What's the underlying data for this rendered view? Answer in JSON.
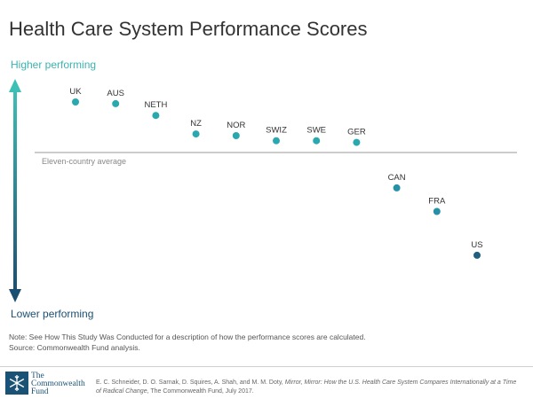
{
  "title": "Health Care System Performance Scores",
  "axis_labels": {
    "top": "Higher performing",
    "bottom": "Lower performing"
  },
  "colors": {
    "top_label": "#3bb3b0",
    "bottom_label": "#1b4f72",
    "average_line": "#999999",
    "point_high": "#2aa8b0",
    "point_low": "#1f5f82"
  },
  "average_label": "Eleven-country average",
  "chart_data": {
    "type": "scatter",
    "title": "Health Care System Performance Scores",
    "ylabel_top": "Higher performing",
    "ylabel_bottom": "Lower performing",
    "reference_line": {
      "label": "Eleven-country average",
      "value": 0
    },
    "categories": [
      "UK",
      "AUS",
      "NETH",
      "NZ",
      "NOR",
      "SWIZ",
      "SWE",
      "GER",
      "CAN",
      "FRA",
      "US"
    ],
    "values": [
      0.3,
      0.29,
      0.22,
      0.11,
      0.1,
      0.07,
      0.07,
      0.06,
      -0.21,
      -0.35,
      -0.61
    ],
    "ylim": [
      -0.8,
      0.5
    ],
    "grid": false,
    "legend": "none"
  },
  "note": "Note: See How This Study Was Conducted for a description of how the performance scores are calculated.",
  "source": "Source: Commonwealth Fund analysis.",
  "logo": {
    "line1": "The",
    "line2": "Commonwealth",
    "line3": "Fund"
  },
  "citation": {
    "authors": "E. C. Schneider, D. O. Sarnak, D. Squires, A. Shah, and M. M. Doty, ",
    "report_title": "Mirror, Mirror: How the U.S. Health Care System Compares Internationally at a Time of Radical Change",
    "publisher": ", The Commonwealth Fund, July 2017."
  }
}
